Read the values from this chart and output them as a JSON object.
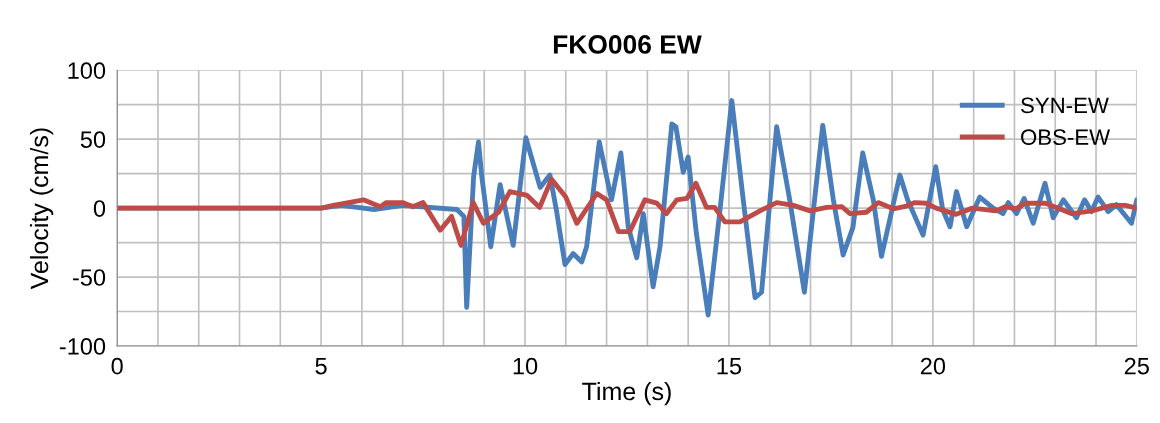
{
  "chart_data": {
    "type": "line",
    "title": "FKO006 EW",
    "xlabel": "Time (s)",
    "ylabel": "Velocity (cm/s)",
    "xlim": [
      0,
      25
    ],
    "ylim": [
      -100,
      100
    ],
    "xticks": [
      0,
      {
        "value": 1,
        "label": null
      },
      {
        "value": 2,
        "label": null
      },
      {
        "value": 3,
        "label": null
      },
      {
        "value": 4,
        "label": null
      },
      5,
      {
        "value": 6,
        "label": null
      },
      {
        "value": 7,
        "label": null
      },
      {
        "value": 8,
        "label": null
      },
      {
        "value": 9,
        "label": null
      },
      10,
      {
        "value": 11,
        "label": null
      },
      {
        "value": 12,
        "label": null
      },
      {
        "value": 13,
        "label": null
      },
      {
        "value": 14,
        "label": null
      },
      15,
      {
        "value": 16,
        "label": null
      },
      {
        "value": 17,
        "label": null
      },
      {
        "value": 18,
        "label": null
      },
      {
        "value": 19,
        "label": null
      },
      20,
      {
        "value": 21,
        "label": null
      },
      {
        "value": 22,
        "label": null
      },
      {
        "value": 23,
        "label": null
      },
      {
        "value": 24,
        "label": null
      },
      25
    ],
    "yticks": [
      -100,
      {
        "value": -75,
        "label": null
      },
      -50,
      {
        "value": -25,
        "label": null
      },
      0,
      {
        "value": 25,
        "label": null
      },
      50,
      {
        "value": 75,
        "label": null
      },
      100
    ],
    "grid": true,
    "legend": "top right",
    "marker": "none",
    "line_style": "solid",
    "series": [
      {
        "name": "SYN-EW",
        "color": "#4a7ebb",
        "x": [
          0,
          5,
          5.5,
          6.3,
          7.0,
          8.33,
          8.5,
          8.57,
          8.74,
          8.86,
          8.94,
          9.16,
          9.39,
          9.71,
          10.02,
          10.37,
          10.61,
          10.77,
          10.98,
          11.18,
          11.39,
          11.51,
          11.82,
          12.12,
          12.35,
          12.53,
          12.74,
          12.9,
          13.14,
          13.31,
          13.6,
          13.7,
          13.88,
          14.0,
          14.2,
          14.49,
          14.78,
          15.07,
          15.35,
          15.64,
          15.8,
          16.17,
          16.49,
          16.85,
          17.3,
          17.56,
          17.8,
          18.04,
          18.28,
          18.54,
          18.74,
          19.19,
          19.38,
          19.76,
          20.07,
          20.24,
          20.42,
          20.58,
          20.83,
          21.15,
          21.48,
          21.72,
          21.85,
          22.05,
          22.24,
          22.46,
          22.75,
          22.95,
          23.2,
          23.52,
          23.72,
          23.89,
          24.05,
          24.3,
          24.5,
          24.87,
          25
        ],
        "values": [
          0,
          0,
          2,
          -1,
          2,
          -1,
          -6,
          -72,
          23,
          48,
          23,
          -28,
          17,
          -27,
          51,
          15,
          24,
          -1.5,
          -41,
          -33,
          -39,
          -28,
          48,
          6,
          40,
          -13.5,
          -36,
          -4,
          -57,
          -28,
          61,
          59,
          26,
          37,
          -18,
          -77.5,
          -1.5,
          78,
          6,
          -65,
          -61,
          59,
          6,
          -61,
          60,
          6,
          -34,
          -14,
          40,
          6,
          -35,
          24,
          6,
          -19.6,
          30,
          -1,
          -13.5,
          12,
          -13.5,
          8,
          0,
          -4,
          4,
          -4,
          7,
          -11,
          18,
          -7,
          6,
          -7,
          6,
          -2.5,
          8,
          -2.5,
          2.5,
          -11,
          6
        ]
      },
      {
        "name": "OBS-EW",
        "color": "#be4b48",
        "x": [
          0,
          5,
          5.3,
          6.04,
          6.45,
          6.6,
          7.0,
          7.25,
          7.5,
          7.92,
          8.2,
          8.43,
          8.73,
          8.98,
          9.35,
          9.63,
          10.04,
          10.36,
          10.65,
          11.0,
          11.27,
          11.76,
          12.0,
          12.29,
          12.57,
          12.94,
          13.23,
          13.47,
          13.72,
          13.97,
          14.19,
          14.45,
          14.65,
          14.9,
          15.27,
          15.76,
          16.17,
          16.58,
          16.99,
          17.4,
          17.77,
          17.97,
          18.37,
          18.66,
          19.03,
          19.35,
          19.56,
          19.84,
          20.08,
          20.57,
          20.97,
          21.54,
          21.78,
          22.03,
          22.27,
          22.76,
          23.41,
          23.9,
          24.39,
          24.72,
          25
        ],
        "values": [
          0,
          0,
          2,
          6,
          1,
          4,
          4,
          1,
          4,
          -16,
          -6,
          -27,
          4,
          -11,
          -3,
          12,
          9.5,
          0.5,
          21,
          8,
          -11,
          10.6,
          6,
          -17,
          -17,
          6,
          3.6,
          -4,
          6,
          7,
          18,
          0.5,
          0.5,
          -10,
          -10,
          -2,
          4,
          2,
          -2,
          0.5,
          1,
          -4,
          -3,
          4,
          -0.5,
          1.5,
          4,
          3.5,
          0,
          -4.5,
          0,
          -2,
          1,
          -0.5,
          3.5,
          3.5,
          -4,
          -2,
          2,
          2,
          0
        ]
      }
    ]
  }
}
